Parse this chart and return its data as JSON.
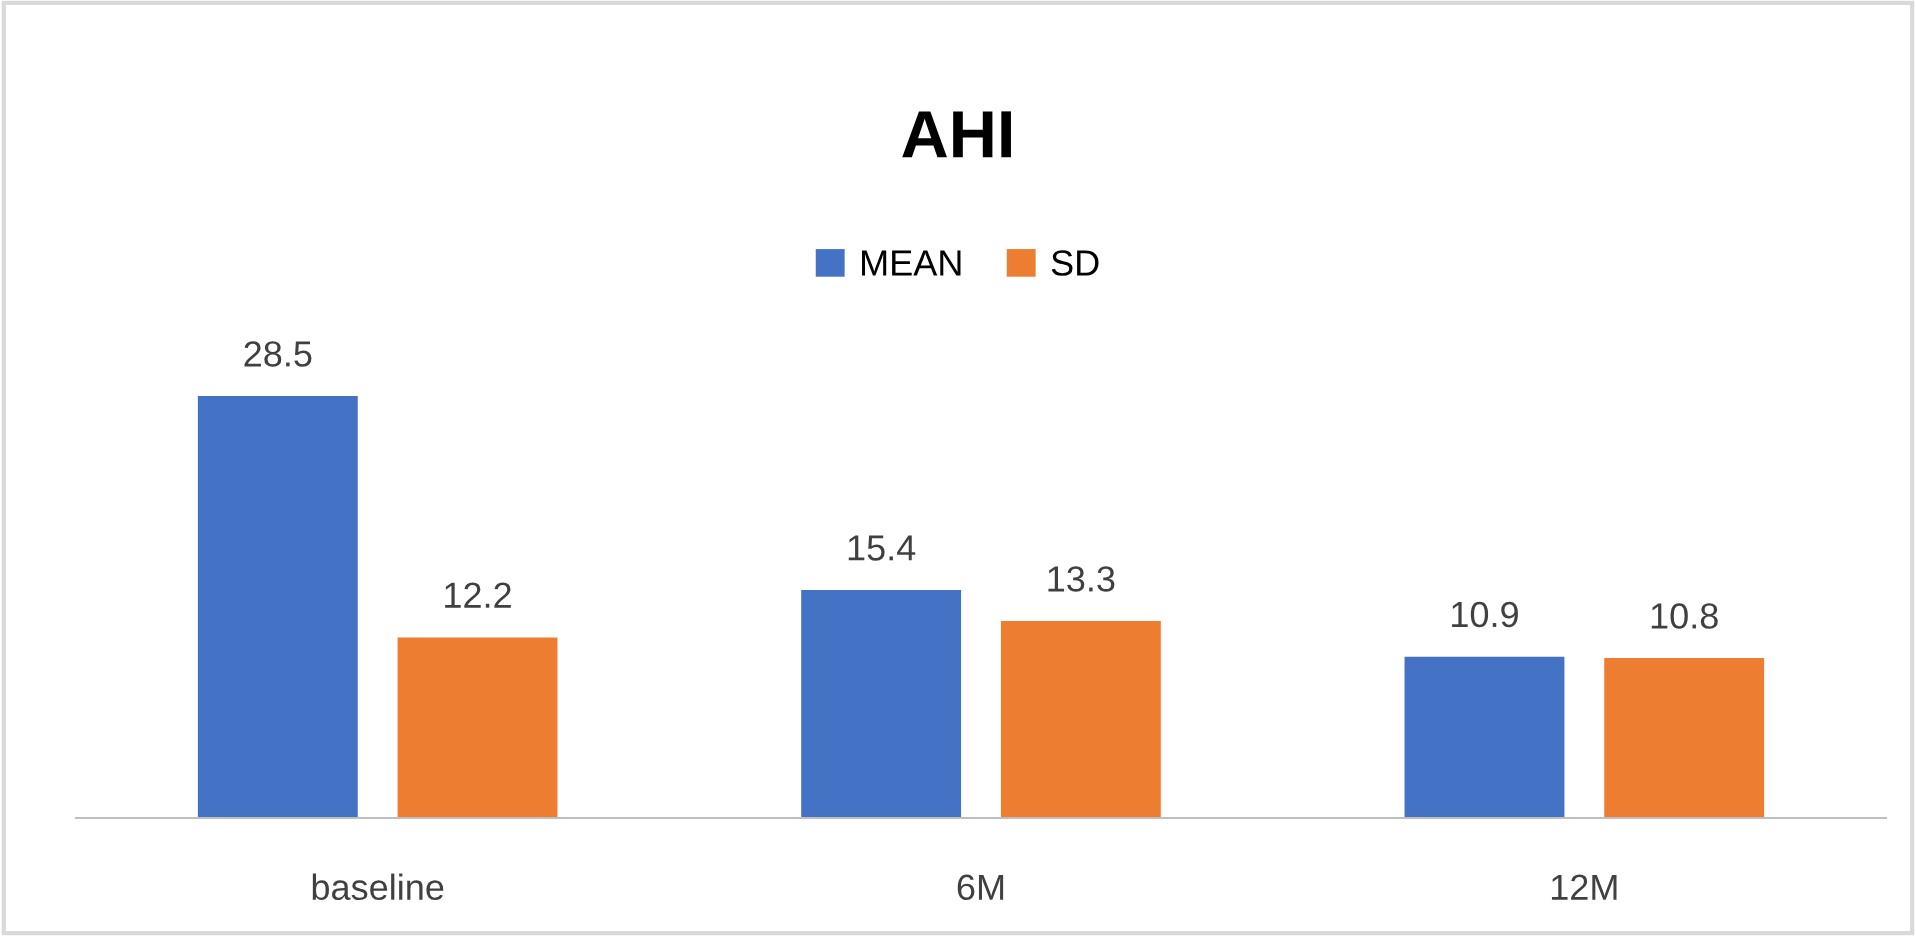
{
  "chart_data": {
    "type": "bar",
    "title": "AHI",
    "categories": [
      "baseline",
      "6M",
      "12M"
    ],
    "series": [
      {
        "name": "MEAN",
        "color": "#4472c4",
        "values": [
          28.5,
          15.4,
          10.9
        ]
      },
      {
        "name": "SD",
        "color": "#ed7d31",
        "values": [
          12.2,
          13.3,
          10.8
        ]
      }
    ],
    "data_labels": true,
    "legend": "top",
    "grid": false,
    "tick_labels": "x"
  }
}
